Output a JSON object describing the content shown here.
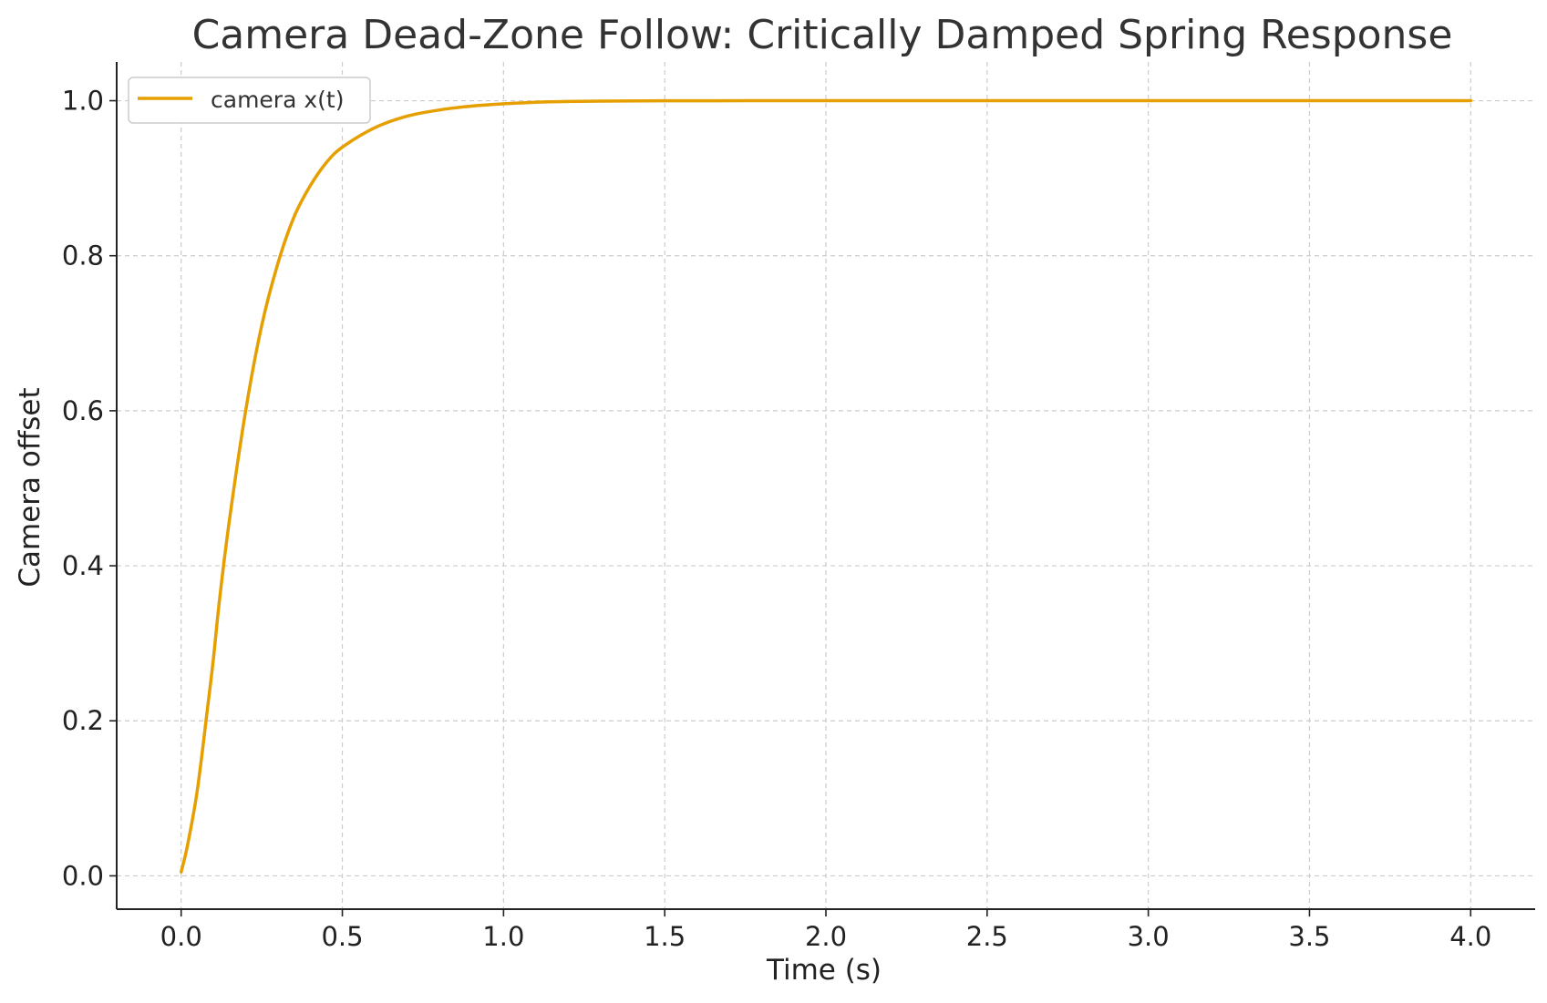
{
  "chart_data": {
    "type": "line",
    "title": "Camera Dead-Zone Follow: Critically Damped Spring Response",
    "xlabel": "Time (s)",
    "ylabel": "Camera offset",
    "xlim": [
      -0.2,
      4.2
    ],
    "ylim": [
      -0.043,
      1.05
    ],
    "x_ticks": [
      0.0,
      0.5,
      1.0,
      1.5,
      2.0,
      2.5,
      3.0,
      3.5,
      4.0
    ],
    "x_tick_labels": [
      "0.0",
      "0.5",
      "1.0",
      "1.5",
      "2.0",
      "2.5",
      "3.0",
      "3.5",
      "4.0"
    ],
    "y_ticks": [
      0.0,
      0.2,
      0.4,
      0.6,
      0.8,
      1.0
    ],
    "y_tick_labels": [
      "0.0",
      "0.2",
      "0.4",
      "0.6",
      "0.8",
      "1.0"
    ],
    "grid": true,
    "legend_position": "top-left",
    "series": [
      {
        "name": "camera x(t)",
        "color": "#E69F00",
        "x": [
          0.0,
          0.02,
          0.05,
          0.08,
          0.1,
          0.12,
          0.15,
          0.2,
          0.25,
          0.3,
          0.35,
          0.4,
          0.45,
          0.5,
          0.6,
          0.7,
          0.8,
          0.9,
          1.0,
          1.1,
          1.2,
          1.3,
          1.5,
          1.75,
          2.0,
          2.5,
          3.0,
          3.5,
          4.0
        ],
        "y": [
          0.005,
          0.04,
          0.11,
          0.21,
          0.28,
          0.36,
          0.46,
          0.6,
          0.71,
          0.79,
          0.85,
          0.89,
          0.92,
          0.94,
          0.965,
          0.98,
          0.988,
          0.993,
          0.996,
          0.998,
          0.999,
          0.9995,
          0.9999,
          1.0,
          1.0,
          1.0,
          1.0,
          1.0,
          1.0
        ]
      }
    ]
  }
}
